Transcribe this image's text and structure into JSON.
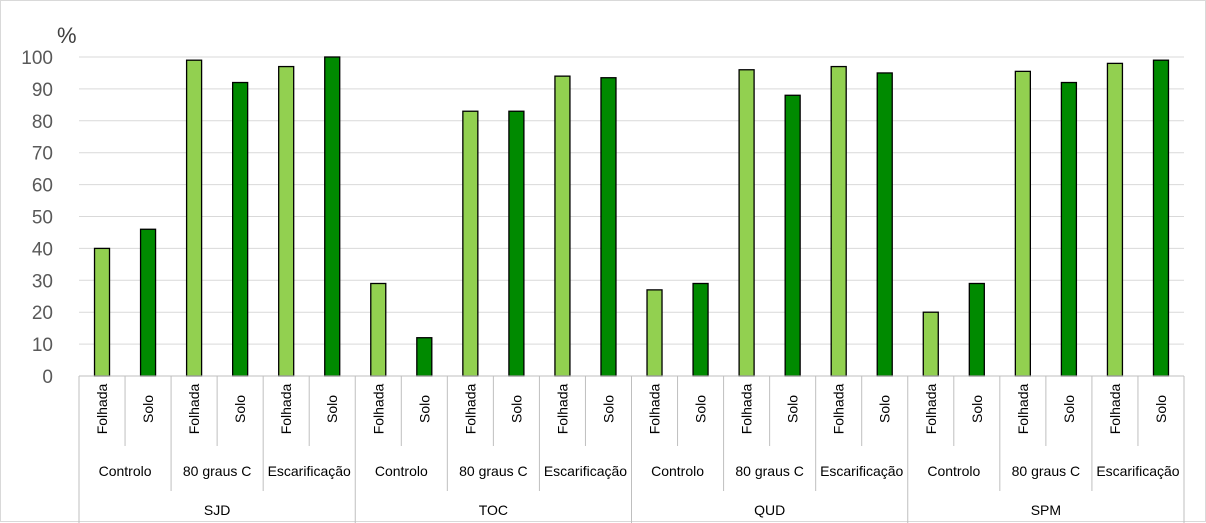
{
  "chart_data": {
    "type": "bar",
    "ylabel": "%",
    "ylim": [
      0,
      100
    ],
    "yticks": [
      0,
      10,
      20,
      30,
      40,
      50,
      60,
      70,
      80,
      90,
      100
    ],
    "grid": true,
    "legend": "none",
    "colors": {
      "Folhada": "#92d050",
      "Solo": "#008a00",
      "bar_stroke": "#000000",
      "grid": "#d9d9d9",
      "axis": "#bfbfbf"
    },
    "sites": [
      "SJD",
      "TOC",
      "QUD",
      "SPM"
    ],
    "treatments": [
      "Controlo",
      "80 graus C",
      "Escarificação"
    ],
    "samples": [
      "Folhada",
      "Solo"
    ],
    "values": {
      "SJD": {
        "Controlo": [
          40,
          46
        ],
        "80 graus C": [
          99,
          92
        ],
        "Escarificação": [
          97,
          100
        ]
      },
      "TOC": {
        "Controlo": [
          29,
          12
        ],
        "80 graus C": [
          83,
          83
        ],
        "Escarificação": [
          94,
          93.5
        ]
      },
      "QUD": {
        "Controlo": [
          27,
          29
        ],
        "80 graus C": [
          96,
          88
        ],
        "Escarificação": [
          97,
          95
        ]
      },
      "SPM": {
        "Controlo": [
          20,
          29
        ],
        "80 graus C": [
          95.5,
          92
        ],
        "Escarificação": [
          98,
          99
        ]
      }
    }
  }
}
